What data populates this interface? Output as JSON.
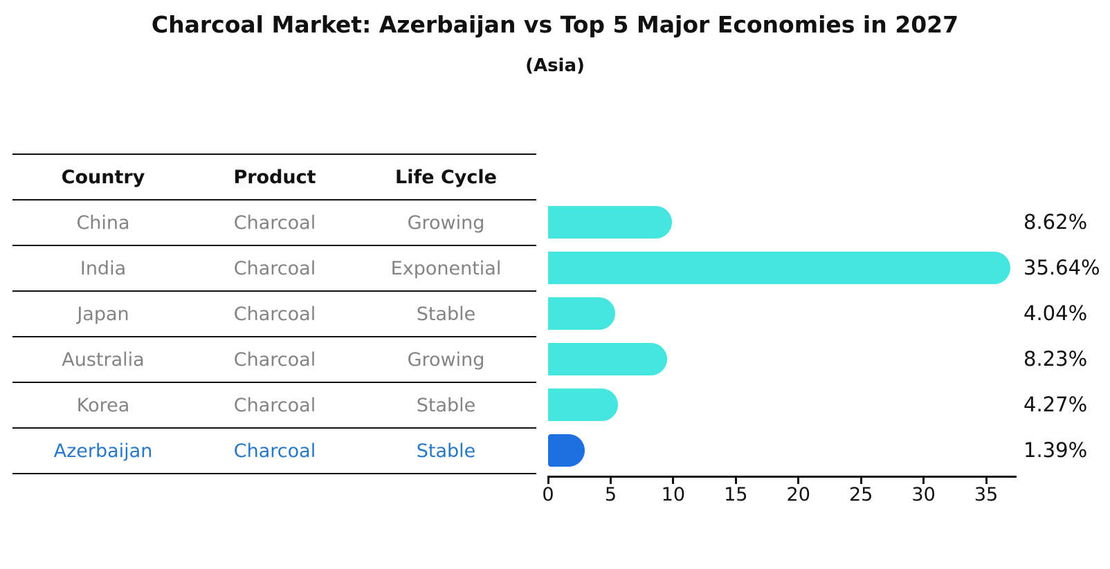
{
  "title": "Charcoal Market: Azerbaijan vs Top 5 Major Economies in 2027",
  "subtitle": "(Asia)",
  "table": {
    "headers": [
      "Country",
      "Product",
      "Life Cycle"
    ],
    "rows": [
      {
        "country": "China",
        "product": "Charcoal",
        "life_cycle": "Growing",
        "highlighted": false
      },
      {
        "country": "India",
        "product": "Charcoal",
        "life_cycle": "Exponential",
        "highlighted": false
      },
      {
        "country": "Japan",
        "product": "Charcoal",
        "life_cycle": "Stable",
        "highlighted": false
      },
      {
        "country": "Australia",
        "product": "Charcoal",
        "life_cycle": "Growing",
        "highlighted": false
      },
      {
        "country": "Korea",
        "product": "Charcoal",
        "life_cycle": "Stable",
        "highlighted": false
      },
      {
        "country": "Azerbaijan",
        "product": "Charcoal",
        "life_cycle": "Stable",
        "highlighted": true
      }
    ]
  },
  "chart_data": {
    "type": "bar",
    "orientation": "horizontal",
    "title": "Charcoal Market: Azerbaijan vs Top 5 Major Economies in 2027 (Asia)",
    "categories": [
      "China",
      "India",
      "Japan",
      "Australia",
      "Korea",
      "Azerbaijan"
    ],
    "values": [
      8.62,
      35.64,
      4.04,
      8.23,
      4.27,
      1.39
    ],
    "value_labels": [
      "8.62%",
      "35.64%",
      "4.04%",
      "8.23%",
      "4.27%",
      "1.39%"
    ],
    "unit": "percent",
    "x_ticks": [
      0,
      5,
      10,
      15,
      20,
      25,
      30,
      35
    ],
    "xlim": [
      0,
      37.4
    ],
    "grid": false,
    "legend": "none",
    "highlight_index": 5
  },
  "colors": {
    "bar": "#45E6E0",
    "highlight_bar": "#1E6FE0",
    "highlight_text": "#2878C8",
    "row_text": "#848484",
    "header_text": "#111111",
    "line": "#111111"
  }
}
